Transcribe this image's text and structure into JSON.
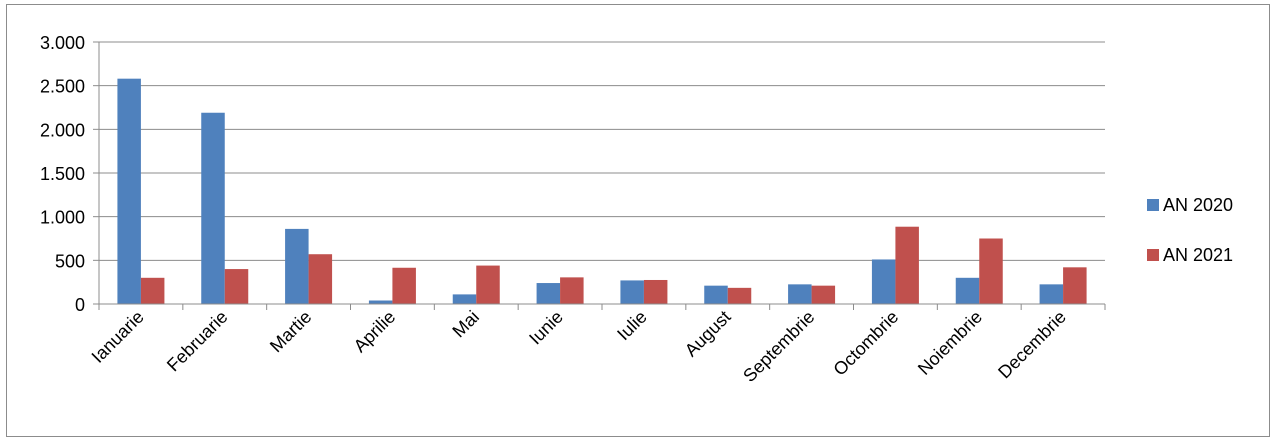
{
  "chart_data": {
    "type": "bar",
    "title": "",
    "xlabel": "",
    "ylabel": "",
    "categories": [
      "Ianuarie",
      "Februarie",
      "Martie",
      "Aprilie",
      "Mai",
      "Iunie",
      "Iulie",
      "August",
      "Septembrie",
      "Octombrie",
      "Noiembrie",
      "Decembrie"
    ],
    "series": [
      {
        "name": "AN 2020",
        "color": "#4f81bd",
        "values": [
          2580,
          2190,
          860,
          40,
          110,
          240,
          270,
          210,
          225,
          510,
          300,
          225
        ]
      },
      {
        "name": "AN 2021",
        "color": "#c0504d",
        "values": [
          300,
          400,
          570,
          415,
          440,
          305,
          275,
          185,
          210,
          885,
          750,
          420
        ]
      }
    ],
    "ylim": [
      0,
      3000
    ],
    "yticks": [
      0,
      500,
      1000,
      1500,
      2000,
      2500,
      3000
    ],
    "ytick_labels": [
      "0",
      "500",
      "1.000",
      "1.500",
      "2.000",
      "2.500",
      "3.000"
    ],
    "grid": true,
    "legend_position": "right"
  }
}
